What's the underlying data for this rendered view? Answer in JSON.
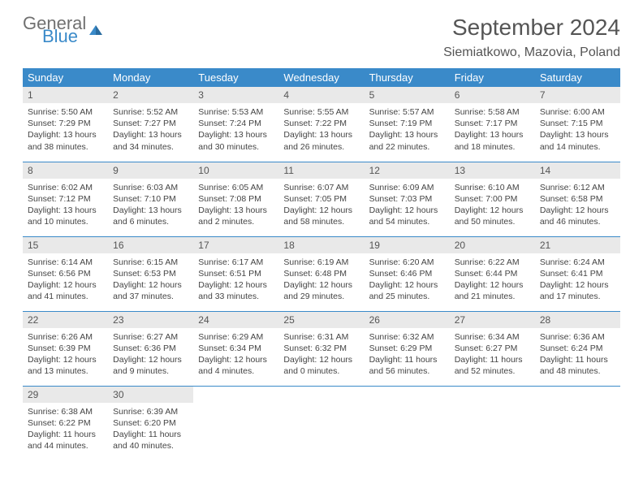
{
  "brand": {
    "name1": "General",
    "name2": "Blue",
    "accent": "#3a8ac9",
    "gray": "#707070"
  },
  "title": "September 2024",
  "location": "Siemiatkowo, Mazovia, Poland",
  "weekdays": [
    "Sunday",
    "Monday",
    "Tuesday",
    "Wednesday",
    "Thursday",
    "Friday",
    "Saturday"
  ],
  "colors": {
    "header_bg": "#3a8ac9",
    "header_text": "#ffffff",
    "daynum_bg": "#e9e9e9",
    "text": "#444444",
    "border": "#3a8ac9"
  },
  "rows": [
    [
      {
        "n": "1",
        "sr": "5:50 AM",
        "ss": "7:29 PM",
        "dl": "13 hours and 38 minutes."
      },
      {
        "n": "2",
        "sr": "5:52 AM",
        "ss": "7:27 PM",
        "dl": "13 hours and 34 minutes."
      },
      {
        "n": "3",
        "sr": "5:53 AM",
        "ss": "7:24 PM",
        "dl": "13 hours and 30 minutes."
      },
      {
        "n": "4",
        "sr": "5:55 AM",
        "ss": "7:22 PM",
        "dl": "13 hours and 26 minutes."
      },
      {
        "n": "5",
        "sr": "5:57 AM",
        "ss": "7:19 PM",
        "dl": "13 hours and 22 minutes."
      },
      {
        "n": "6",
        "sr": "5:58 AM",
        "ss": "7:17 PM",
        "dl": "13 hours and 18 minutes."
      },
      {
        "n": "7",
        "sr": "6:00 AM",
        "ss": "7:15 PM",
        "dl": "13 hours and 14 minutes."
      }
    ],
    [
      {
        "n": "8",
        "sr": "6:02 AM",
        "ss": "7:12 PM",
        "dl": "13 hours and 10 minutes."
      },
      {
        "n": "9",
        "sr": "6:03 AM",
        "ss": "7:10 PM",
        "dl": "13 hours and 6 minutes."
      },
      {
        "n": "10",
        "sr": "6:05 AM",
        "ss": "7:08 PM",
        "dl": "13 hours and 2 minutes."
      },
      {
        "n": "11",
        "sr": "6:07 AM",
        "ss": "7:05 PM",
        "dl": "12 hours and 58 minutes."
      },
      {
        "n": "12",
        "sr": "6:09 AM",
        "ss": "7:03 PM",
        "dl": "12 hours and 54 minutes."
      },
      {
        "n": "13",
        "sr": "6:10 AM",
        "ss": "7:00 PM",
        "dl": "12 hours and 50 minutes."
      },
      {
        "n": "14",
        "sr": "6:12 AM",
        "ss": "6:58 PM",
        "dl": "12 hours and 46 minutes."
      }
    ],
    [
      {
        "n": "15",
        "sr": "6:14 AM",
        "ss": "6:56 PM",
        "dl": "12 hours and 41 minutes."
      },
      {
        "n": "16",
        "sr": "6:15 AM",
        "ss": "6:53 PM",
        "dl": "12 hours and 37 minutes."
      },
      {
        "n": "17",
        "sr": "6:17 AM",
        "ss": "6:51 PM",
        "dl": "12 hours and 33 minutes."
      },
      {
        "n": "18",
        "sr": "6:19 AM",
        "ss": "6:48 PM",
        "dl": "12 hours and 29 minutes."
      },
      {
        "n": "19",
        "sr": "6:20 AM",
        "ss": "6:46 PM",
        "dl": "12 hours and 25 minutes."
      },
      {
        "n": "20",
        "sr": "6:22 AM",
        "ss": "6:44 PM",
        "dl": "12 hours and 21 minutes."
      },
      {
        "n": "21",
        "sr": "6:24 AM",
        "ss": "6:41 PM",
        "dl": "12 hours and 17 minutes."
      }
    ],
    [
      {
        "n": "22",
        "sr": "6:26 AM",
        "ss": "6:39 PM",
        "dl": "12 hours and 13 minutes."
      },
      {
        "n": "23",
        "sr": "6:27 AM",
        "ss": "6:36 PM",
        "dl": "12 hours and 9 minutes."
      },
      {
        "n": "24",
        "sr": "6:29 AM",
        "ss": "6:34 PM",
        "dl": "12 hours and 4 minutes."
      },
      {
        "n": "25",
        "sr": "6:31 AM",
        "ss": "6:32 PM",
        "dl": "12 hours and 0 minutes."
      },
      {
        "n": "26",
        "sr": "6:32 AM",
        "ss": "6:29 PM",
        "dl": "11 hours and 56 minutes."
      },
      {
        "n": "27",
        "sr": "6:34 AM",
        "ss": "6:27 PM",
        "dl": "11 hours and 52 minutes."
      },
      {
        "n": "28",
        "sr": "6:36 AM",
        "ss": "6:24 PM",
        "dl": "11 hours and 48 minutes."
      }
    ],
    [
      {
        "n": "29",
        "sr": "6:38 AM",
        "ss": "6:22 PM",
        "dl": "11 hours and 44 minutes."
      },
      {
        "n": "30",
        "sr": "6:39 AM",
        "ss": "6:20 PM",
        "dl": "11 hours and 40 minutes."
      },
      {
        "empty": true
      },
      {
        "empty": true
      },
      {
        "empty": true
      },
      {
        "empty": true
      },
      {
        "empty": true
      }
    ]
  ],
  "labels": {
    "sunrise": "Sunrise:",
    "sunset": "Sunset:",
    "daylight": "Daylight:"
  }
}
